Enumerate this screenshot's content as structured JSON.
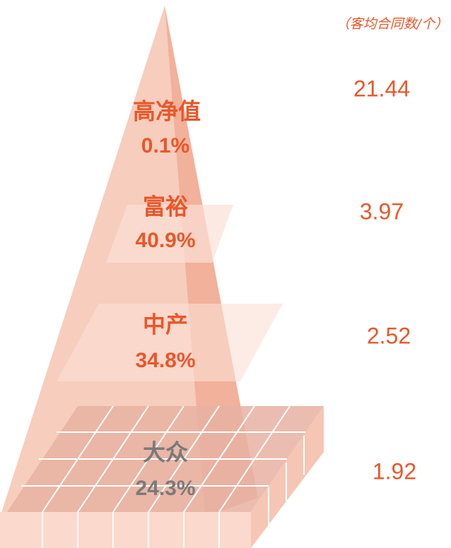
{
  "unit_note": "（客均合同数/个）",
  "levels": [
    {
      "label": "高净值",
      "share": "0.1%",
      "contracts": "21.44"
    },
    {
      "label": "富裕",
      "share": "40.9%",
      "contracts": "3.97"
    },
    {
      "label": "中产",
      "share": "34.8%",
      "contracts": "2.52"
    },
    {
      "label": "大众",
      "share": "24.3%",
      "contracts": "1.92"
    }
  ]
}
